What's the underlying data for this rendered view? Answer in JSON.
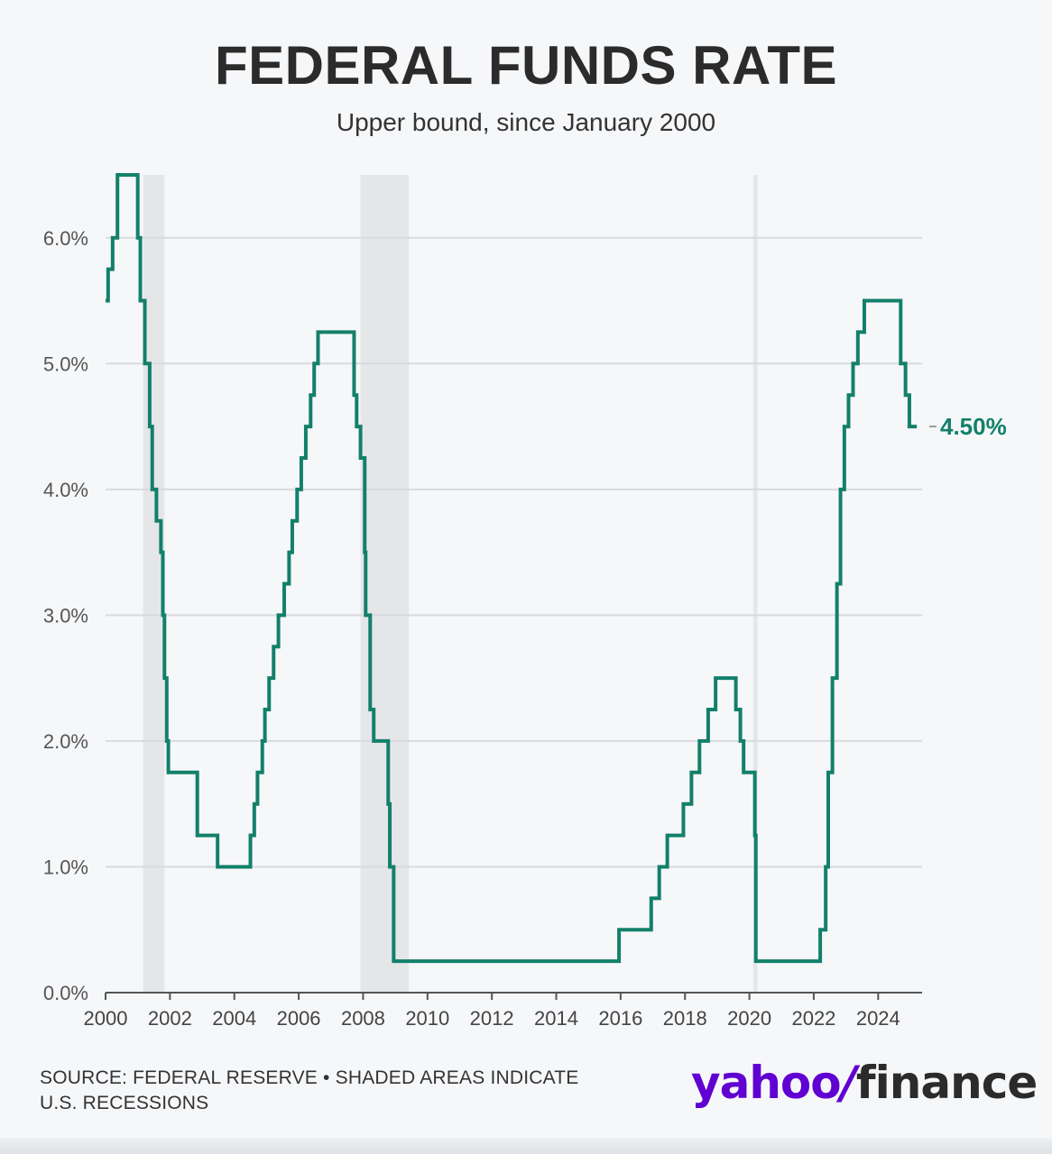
{
  "title": "FEDERAL FUNDS RATE",
  "subtitle": "Upper bound, since January 2000",
  "source_line1": "SOURCE: FEDERAL RESERVE • SHADED AREAS INDICATE",
  "source_line2": "U.S. RECESSIONS",
  "brand": {
    "yahoo": "yahoo",
    "slash": "/",
    "finance": "finance"
  },
  "colors": {
    "line": "#12806a",
    "recession": "#e5e6e8",
    "grid": "#d8dadd",
    "brand": "#6001d2"
  },
  "chart_data": {
    "type": "line",
    "xlim": [
      2000,
      2025.4
    ],
    "ylim": [
      0,
      6.5
    ],
    "xticks": [
      2000,
      2002,
      2004,
      2006,
      2008,
      2010,
      2012,
      2014,
      2016,
      2018,
      2020,
      2022,
      2024
    ],
    "xtick_labels": [
      "2000",
      "2002",
      "2004",
      "2006",
      "2008",
      "2010",
      "2012",
      "2014",
      "2016",
      "2018",
      "2020",
      "2022",
      "2024"
    ],
    "yticks": [
      0,
      1,
      2,
      3,
      4,
      5,
      6
    ],
    "ytick_labels": [
      "0.0%",
      "1.0%",
      "2.0%",
      "3.0%",
      "4.0%",
      "5.0%",
      "6.0%"
    ],
    "grid": true,
    "recessions": [
      [
        2001.17,
        2001.83
      ],
      [
        2007.92,
        2009.42
      ],
      [
        2020.12,
        2020.25
      ]
    ],
    "end_label": "4.50%",
    "series": [
      {
        "step": "post",
        "points": [
          [
            2000.0,
            5.5
          ],
          [
            2000.08,
            5.75
          ],
          [
            2000.22,
            6.0
          ],
          [
            2000.37,
            6.5
          ],
          [
            2001.0,
            6.0
          ],
          [
            2001.08,
            5.5
          ],
          [
            2001.22,
            5.0
          ],
          [
            2001.37,
            4.5
          ],
          [
            2001.45,
            4.0
          ],
          [
            2001.58,
            3.75
          ],
          [
            2001.72,
            3.5
          ],
          [
            2001.78,
            3.0
          ],
          [
            2001.83,
            2.5
          ],
          [
            2001.9,
            2.0
          ],
          [
            2001.95,
            1.75
          ],
          [
            2002.85,
            1.25
          ],
          [
            2003.48,
            1.0
          ],
          [
            2004.5,
            1.25
          ],
          [
            2004.62,
            1.5
          ],
          [
            2004.72,
            1.75
          ],
          [
            2004.87,
            2.0
          ],
          [
            2004.95,
            2.25
          ],
          [
            2005.08,
            2.5
          ],
          [
            2005.22,
            2.75
          ],
          [
            2005.37,
            3.0
          ],
          [
            2005.55,
            3.25
          ],
          [
            2005.7,
            3.5
          ],
          [
            2005.8,
            3.75
          ],
          [
            2005.95,
            4.0
          ],
          [
            2006.08,
            4.25
          ],
          [
            2006.22,
            4.5
          ],
          [
            2006.37,
            4.75
          ],
          [
            2006.48,
            5.0
          ],
          [
            2006.6,
            5.25
          ],
          [
            2007.72,
            4.75
          ],
          [
            2007.8,
            4.5
          ],
          [
            2007.92,
            4.25
          ],
          [
            2008.05,
            3.5
          ],
          [
            2008.08,
            3.0
          ],
          [
            2008.22,
            2.25
          ],
          [
            2008.33,
            2.0
          ],
          [
            2008.78,
            1.5
          ],
          [
            2008.83,
            1.0
          ],
          [
            2008.95,
            0.25
          ],
          [
            2015.95,
            0.5
          ],
          [
            2016.95,
            0.75
          ],
          [
            2017.2,
            1.0
          ],
          [
            2017.45,
            1.25
          ],
          [
            2017.95,
            1.5
          ],
          [
            2018.2,
            1.75
          ],
          [
            2018.45,
            2.0
          ],
          [
            2018.72,
            2.25
          ],
          [
            2018.95,
            2.5
          ],
          [
            2019.58,
            2.25
          ],
          [
            2019.72,
            2.0
          ],
          [
            2019.82,
            1.75
          ],
          [
            2020.17,
            1.25
          ],
          [
            2020.2,
            0.25
          ],
          [
            2022.2,
            0.5
          ],
          [
            2022.37,
            1.0
          ],
          [
            2022.45,
            1.75
          ],
          [
            2022.58,
            2.5
          ],
          [
            2022.72,
            3.25
          ],
          [
            2022.83,
            4.0
          ],
          [
            2022.95,
            4.5
          ],
          [
            2023.08,
            4.75
          ],
          [
            2023.22,
            5.0
          ],
          [
            2023.37,
            5.25
          ],
          [
            2023.57,
            5.5
          ],
          [
            2024.7,
            5.0
          ],
          [
            2024.85,
            4.75
          ],
          [
            2024.97,
            4.5
          ],
          [
            2025.2,
            4.5
          ]
        ]
      }
    ]
  }
}
